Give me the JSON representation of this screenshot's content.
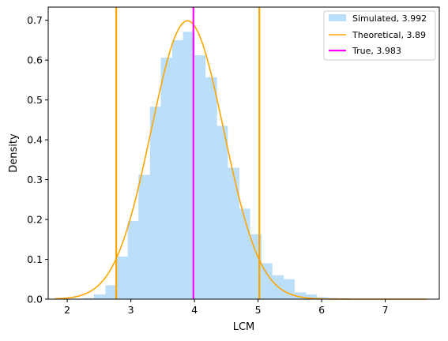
{
  "chart_data": {
    "type": "histogram",
    "xlabel": "LCM",
    "ylabel": "Density",
    "xlim": [
      1.7,
      7.85
    ],
    "ylim": [
      0,
      0.733
    ],
    "xticks": [
      2,
      3,
      4,
      5,
      6,
      7
    ],
    "yticks": [
      0.0,
      0.1,
      0.2,
      0.3,
      0.4,
      0.5,
      0.6,
      0.7
    ],
    "legend_position": "top-right",
    "histogram": {
      "name": "Simulated, 3.992",
      "color": "#bbdefb",
      "bins": [
        {
          "x0": 2.25,
          "x1": 2.42,
          "y": 0.003
        },
        {
          "x0": 2.42,
          "x1": 2.6,
          "y": 0.012
        },
        {
          "x0": 2.6,
          "x1": 2.77,
          "y": 0.035
        },
        {
          "x0": 2.77,
          "x1": 2.95,
          "y": 0.107
        },
        {
          "x0": 2.95,
          "x1": 3.12,
          "y": 0.196
        },
        {
          "x0": 3.12,
          "x1": 3.3,
          "y": 0.312
        },
        {
          "x0": 3.3,
          "x1": 3.47,
          "y": 0.483
        },
        {
          "x0": 3.47,
          "x1": 3.65,
          "y": 0.606
        },
        {
          "x0": 3.65,
          "x1": 3.82,
          "y": 0.65
        },
        {
          "x0": 3.82,
          "x1": 4.0,
          "y": 0.671
        },
        {
          "x0": 4.0,
          "x1": 4.17,
          "y": 0.612
        },
        {
          "x0": 4.17,
          "x1": 4.35,
          "y": 0.557
        },
        {
          "x0": 4.35,
          "x1": 4.52,
          "y": 0.435
        },
        {
          "x0": 4.52,
          "x1": 4.7,
          "y": 0.33
        },
        {
          "x0": 4.7,
          "x1": 4.87,
          "y": 0.227
        },
        {
          "x0": 4.87,
          "x1": 5.05,
          "y": 0.163
        },
        {
          "x0": 5.05,
          "x1": 5.22,
          "y": 0.09
        },
        {
          "x0": 5.22,
          "x1": 5.4,
          "y": 0.06
        },
        {
          "x0": 5.4,
          "x1": 5.57,
          "y": 0.05
        },
        {
          "x0": 5.57,
          "x1": 5.75,
          "y": 0.017
        },
        {
          "x0": 5.75,
          "x1": 5.92,
          "y": 0.012
        },
        {
          "x0": 5.92,
          "x1": 6.1,
          "y": 0.005
        },
        {
          "x0": 6.1,
          "x1": 6.27,
          "y": 0.003
        },
        {
          "x0": 6.27,
          "x1": 6.45,
          "y": 0.002
        }
      ]
    },
    "curve": {
      "name": "Theoretical, 3.89",
      "color": "#ffa500",
      "distribution": "normal",
      "mean": 3.89,
      "sd": 0.571,
      "x_range": [
        1.8,
        7.65
      ]
    },
    "vlines": [
      {
        "name": "True, 3.983",
        "x": 3.983,
        "color": "#ff00ff"
      },
      {
        "x": 2.77,
        "color": "#ffa500"
      },
      {
        "x": 5.02,
        "color": "#ffa500"
      }
    ],
    "legend": [
      {
        "label": "Simulated, 3.992",
        "kind": "patch",
        "color": "#bbdefb"
      },
      {
        "label": "Theoretical, 3.89",
        "kind": "line",
        "color": "#ffa500"
      },
      {
        "label": "True, 3.983",
        "kind": "line",
        "color": "#ff00ff"
      }
    ]
  }
}
